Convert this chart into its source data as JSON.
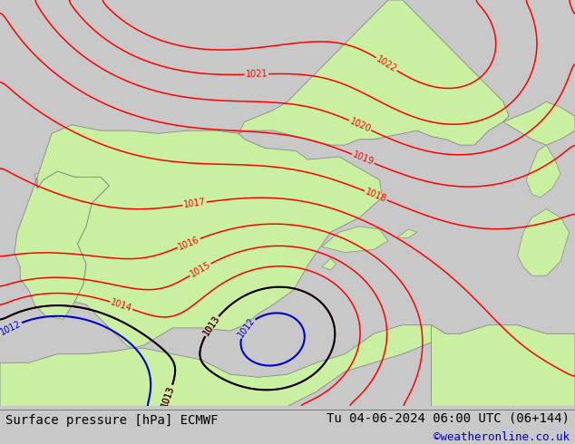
{
  "title_left": "Surface pressure [hPa] ECMWF",
  "title_right": "Tu 04-06-2024 06:00 UTC (06+144)",
  "credit": "©weatheronline.co.uk",
  "bg_color": "#c8c8c8",
  "land_color": "#c8f0a0",
  "contour_color_red": "#ff0000",
  "contour_color_black": "#000000",
  "contour_color_blue": "#0000cd",
  "text_color_bottom": "#000000",
  "credit_color": "#0000cc",
  "figsize": [
    6.34,
    4.9
  ],
  "dpi": 100,
  "lon_min": -10,
  "lon_max": 10,
  "lat_min": 34,
  "lat_max": 48
}
